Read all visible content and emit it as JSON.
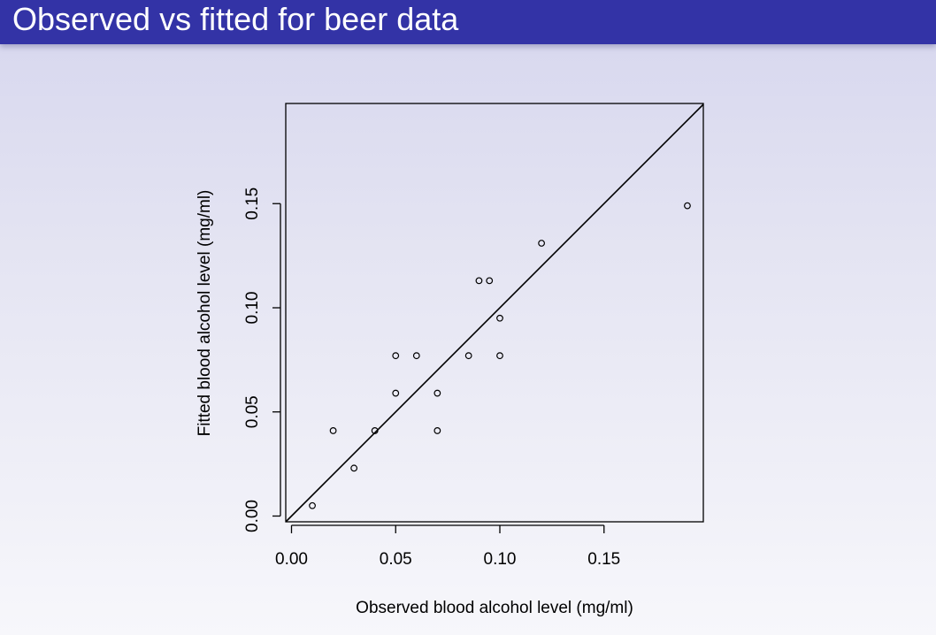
{
  "slide": {
    "title": "Observed vs fitted for beer data"
  },
  "colors": {
    "title_bar": "#3333a6",
    "title_text": "#ffffff",
    "ink": "#000000"
  },
  "chart_data": {
    "type": "scatter",
    "title": "",
    "xlabel": "Observed blood alcohol level (mg/ml)",
    "ylabel": "Fitted blood alcohol level (mg/ml)",
    "xlim": [
      0.0,
      0.19
    ],
    "ylim": [
      0.0,
      0.19
    ],
    "x_ticks": [
      0.0,
      0.05,
      0.1,
      0.15
    ],
    "y_ticks": [
      0.0,
      0.05,
      0.1,
      0.15
    ],
    "x_tick_labels": [
      "0.00",
      "0.05",
      "0.10",
      "0.15"
    ],
    "y_tick_labels": [
      "0.00",
      "0.05",
      "0.10",
      "0.15"
    ],
    "grid": false,
    "reference_line": "y = x",
    "points": [
      {
        "x": 0.01,
        "y": 0.005
      },
      {
        "x": 0.02,
        "y": 0.041
      },
      {
        "x": 0.03,
        "y": 0.023
      },
      {
        "x": 0.04,
        "y": 0.041
      },
      {
        "x": 0.05,
        "y": 0.059
      },
      {
        "x": 0.05,
        "y": 0.077
      },
      {
        "x": 0.06,
        "y": 0.077
      },
      {
        "x": 0.07,
        "y": 0.059
      },
      {
        "x": 0.07,
        "y": 0.041
      },
      {
        "x": 0.085,
        "y": 0.077
      },
      {
        "x": 0.09,
        "y": 0.113
      },
      {
        "x": 0.095,
        "y": 0.113
      },
      {
        "x": 0.1,
        "y": 0.095
      },
      {
        "x": 0.1,
        "y": 0.077
      },
      {
        "x": 0.12,
        "y": 0.131
      },
      {
        "x": 0.19,
        "y": 0.149
      }
    ]
  }
}
